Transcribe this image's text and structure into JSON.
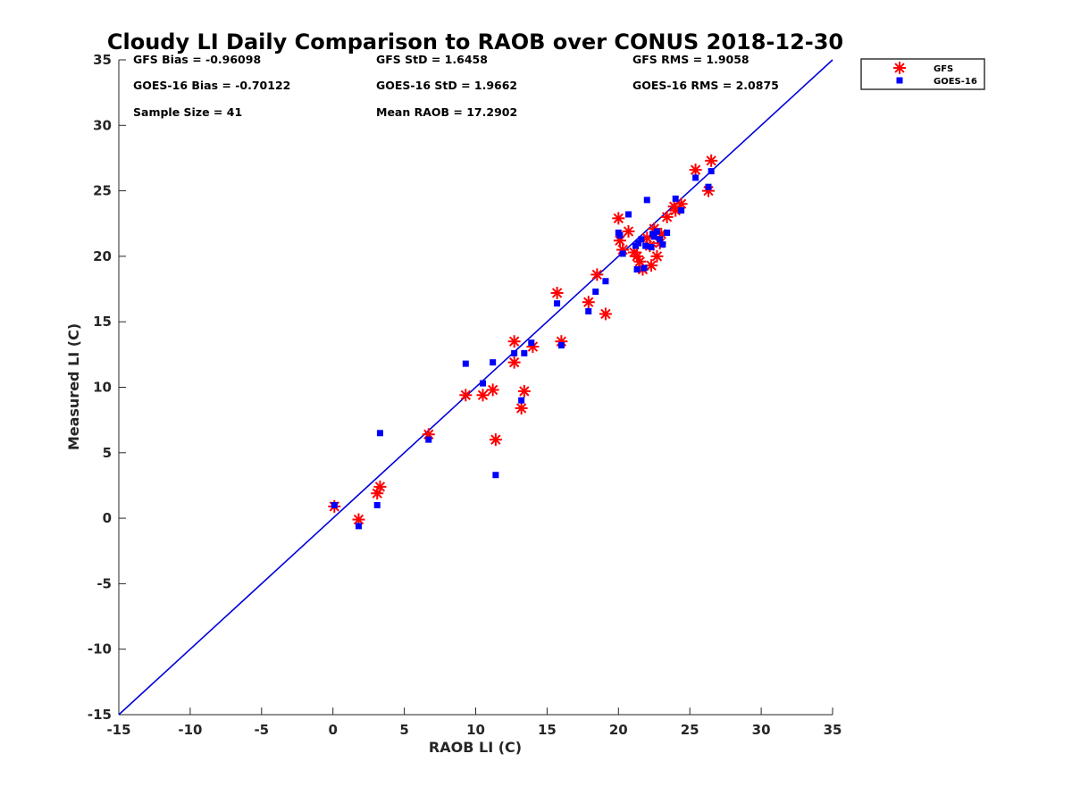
{
  "chart_data": {
    "type": "scatter",
    "title": "Cloudy LI Daily Comparison to RAOB over CONUS 2018-12-30",
    "xlabel": "RAOB LI (C)",
    "ylabel": "Measured LI (C)",
    "xlim": [
      -15,
      35
    ],
    "ylim": [
      -15,
      35
    ],
    "xticks": [
      "-15",
      "-10",
      "-5",
      "0",
      "5",
      "10",
      "15",
      "20",
      "25",
      "30",
      "35"
    ],
    "yticks": [
      "-15",
      "-10",
      "-5",
      "0",
      "5",
      "10",
      "15",
      "20",
      "25",
      "30",
      "35"
    ],
    "grid": false,
    "legend_position": "top-right, outside plot",
    "reference_line": {
      "type": "one-to-one",
      "color": "#0000dd"
    },
    "stats": [
      [
        "GFS Bias = -0.96098",
        "GFS StD = 1.6458",
        "GFS RMS = 1.9058"
      ],
      [
        "GOES-16 Bias = -0.70122",
        "GOES-16 StD = 1.9662",
        "GOES-16 RMS = 2.0875"
      ],
      [
        "Sample Size = 41",
        "Mean RAOB = 17.2902",
        ""
      ]
    ],
    "series": [
      {
        "name": "GFS",
        "marker": "asterisk",
        "color": "#ff0000",
        "points": [
          [
            0.1,
            0.9
          ],
          [
            1.8,
            -0.1
          ],
          [
            3.1,
            1.9
          ],
          [
            3.3,
            2.4
          ],
          [
            6.7,
            6.4
          ],
          [
            9.3,
            9.4
          ],
          [
            10.5,
            9.4
          ],
          [
            11.2,
            9.8
          ],
          [
            11.4,
            6.0
          ],
          [
            12.7,
            11.9
          ],
          [
            12.7,
            13.5
          ],
          [
            13.2,
            8.4
          ],
          [
            13.4,
            9.7
          ],
          [
            14.0,
            13.1
          ],
          [
            15.7,
            17.2
          ],
          [
            16.0,
            13.5
          ],
          [
            17.9,
            16.5
          ],
          [
            18.5,
            18.6
          ],
          [
            19.1,
            15.6
          ],
          [
            20.0,
            22.9
          ],
          [
            20.1,
            21.2
          ],
          [
            20.3,
            20.5
          ],
          [
            20.7,
            21.9
          ],
          [
            21.3,
            20.0
          ],
          [
            21.5,
            19.6
          ],
          [
            21.7,
            19.0
          ],
          [
            22.0,
            21.4
          ],
          [
            22.3,
            19.3
          ],
          [
            22.5,
            22.1
          ],
          [
            22.7,
            20.0
          ],
          [
            23.0,
            21.7
          ],
          [
            23.4,
            23.0
          ],
          [
            23.9,
            23.8
          ],
          [
            24.4,
            24.0
          ],
          [
            25.4,
            26.6
          ],
          [
            26.3,
            25.0
          ],
          [
            26.5,
            27.3
          ],
          [
            22.9,
            21.0
          ],
          [
            21.1,
            20.3
          ],
          [
            24.0,
            23.5
          ],
          [
            22.2,
            20.8
          ]
        ]
      },
      {
        "name": "GOES-16",
        "marker": "square",
        "color": "#0000ff",
        "points": [
          [
            0.1,
            1.0
          ],
          [
            1.8,
            -0.6
          ],
          [
            3.1,
            1.0
          ],
          [
            3.3,
            6.5
          ],
          [
            6.7,
            6.0
          ],
          [
            9.3,
            11.8
          ],
          [
            10.5,
            10.3
          ],
          [
            11.2,
            11.9
          ],
          [
            11.4,
            3.3
          ],
          [
            12.7,
            12.6
          ],
          [
            13.2,
            9.0
          ],
          [
            13.4,
            12.6
          ],
          [
            13.9,
            13.4
          ],
          [
            15.7,
            16.4
          ],
          [
            16.0,
            13.2
          ],
          [
            17.9,
            15.8
          ],
          [
            18.4,
            17.3
          ],
          [
            19.1,
            18.1
          ],
          [
            20.0,
            21.8
          ],
          [
            20.1,
            21.6
          ],
          [
            20.3,
            20.2
          ],
          [
            20.7,
            23.2
          ],
          [
            21.2,
            20.8
          ],
          [
            21.3,
            19.0
          ],
          [
            21.4,
            21.0
          ],
          [
            21.8,
            19.1
          ],
          [
            21.9,
            20.8
          ],
          [
            22.0,
            24.3
          ],
          [
            22.3,
            20.7
          ],
          [
            22.5,
            21.5
          ],
          [
            22.7,
            21.9
          ],
          [
            22.9,
            21.3
          ],
          [
            23.1,
            20.9
          ],
          [
            23.4,
            21.8
          ],
          [
            24.0,
            24.4
          ],
          [
            24.4,
            23.5
          ],
          [
            25.4,
            26.0
          ],
          [
            26.3,
            25.3
          ],
          [
            26.5,
            26.5
          ],
          [
            21.6,
            21.3
          ],
          [
            22.4,
            21.7
          ]
        ]
      }
    ]
  }
}
